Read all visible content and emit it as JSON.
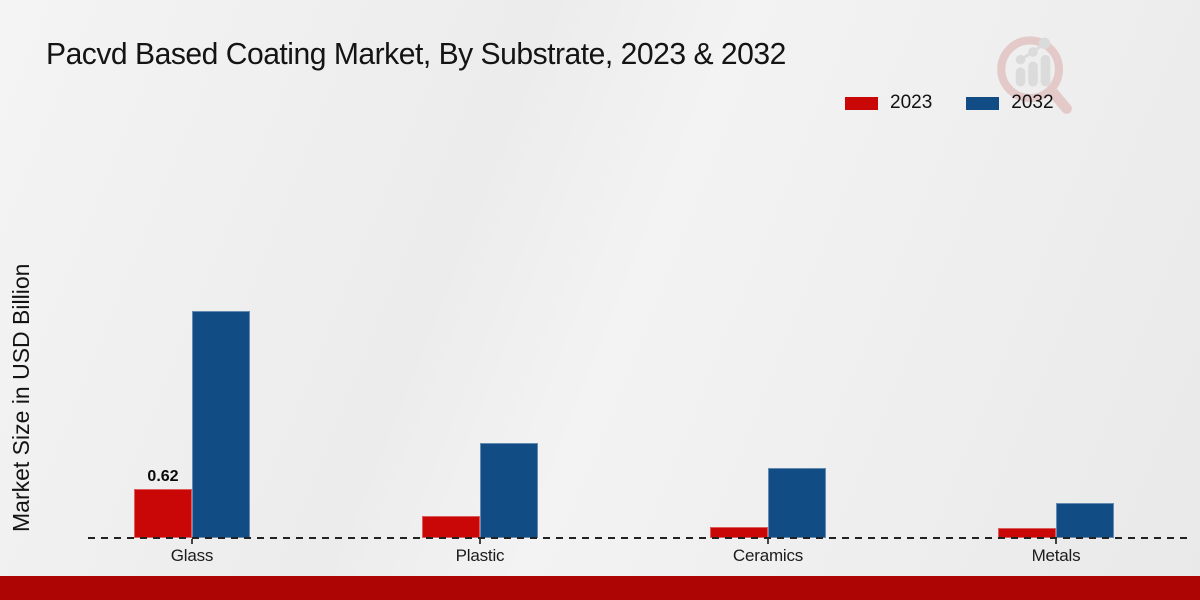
{
  "header": {
    "title": "Pacvd Based Coating Market, By Substrate, 2023 & 2032"
  },
  "chart_data": {
    "type": "bar",
    "title": "Pacvd Based Coating Market, By Substrate, 2023 & 2032",
    "xlabel": "",
    "ylabel": "Market Size in USD Billion",
    "categories": [
      "Glass",
      "Plastic",
      "Ceramics",
      "Metals"
    ],
    "series": [
      {
        "name": "2023",
        "color": "#c90707",
        "values": [
          0.62,
          0.28,
          0.14,
          0.13
        ],
        "data_labels": [
          "0.62",
          "",
          "",
          ""
        ]
      },
      {
        "name": "2032",
        "color": "#114c85",
        "values": [
          2.87,
          1.2,
          0.89,
          0.44
        ],
        "data_labels": [
          "",
          "",
          "",
          ""
        ]
      }
    ],
    "legend_position": "top-right",
    "grid": false,
    "y_axis_ticks_visible": false,
    "baseline_style": "dashed"
  },
  "colors": {
    "bar_2023": "#c90707",
    "bar_2032": "#114c85",
    "footer_strip": "#ad0404",
    "baseline": "#222222",
    "background_light": "#f3f3f3"
  },
  "icons": {
    "watermark": "magnifier-bar-chart-logo"
  }
}
